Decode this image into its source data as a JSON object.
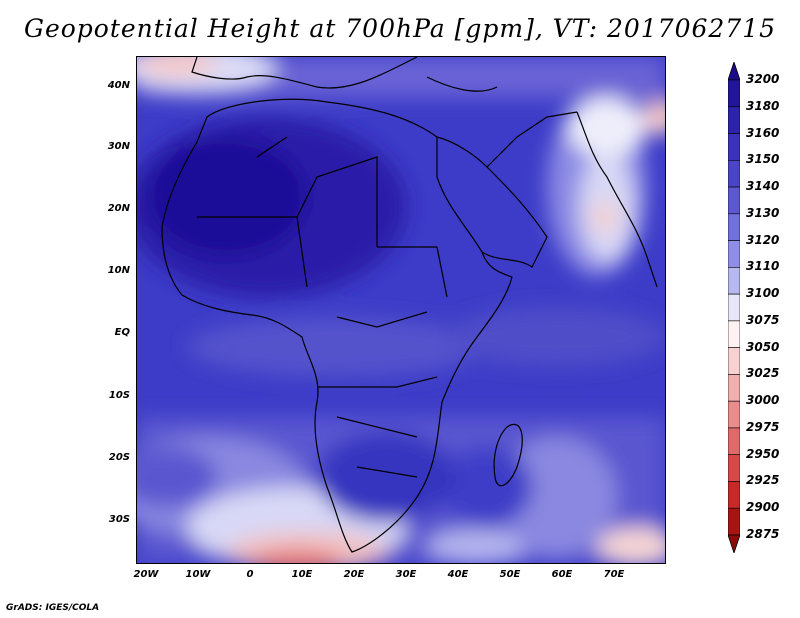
{
  "title": "Geopotential Height at 700hPa [gpm], VT: 2017062715",
  "credit": "GrADS: IGES/COLA",
  "map": {
    "lat_labels": [
      "40N",
      "30N",
      "20N",
      "10N",
      "EQ",
      "10S",
      "20S",
      "30S"
    ],
    "lon_labels": [
      "20W",
      "10W",
      "0",
      "10E",
      "20E",
      "30E",
      "40E",
      "50E",
      "60E",
      "70E"
    ],
    "extent": {
      "lon": [
        -22,
        80
      ],
      "lat": [
        -37,
        45
      ]
    }
  },
  "colorbar": {
    "levels": [
      "3200",
      "3180",
      "3160",
      "3150",
      "3140",
      "3130",
      "3120",
      "3110",
      "3100",
      "3075",
      "3050",
      "3025",
      "3000",
      "2975",
      "2950",
      "2925",
      "2900",
      "2875"
    ],
    "colors": [
      "#1b0a8c",
      "#23149c",
      "#2c22ac",
      "#3a32bc",
      "#4a44c8",
      "#5c58d2",
      "#7270dc",
      "#8e8ee6",
      "#b8b8f0",
      "#e6e6f8",
      "#fff2f2",
      "#f8d2d2",
      "#f0b0b0",
      "#e88c8c",
      "#e06a6a",
      "#d84848",
      "#c82828",
      "#a81414",
      "#8a0a0a"
    ]
  },
  "icons": {
    "arrow_top": "triangle-up",
    "arrow_bottom": "triangle-down"
  }
}
